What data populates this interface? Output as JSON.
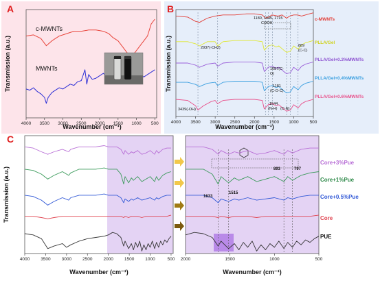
{
  "panels": {
    "A": {
      "letter": "A",
      "xlabel": "Wavenumber (cm⁻¹)",
      "ylabel": "Transmission (a.u.)",
      "xticks": [
        "4000",
        "3500",
        "3000",
        "2500",
        "2000",
        "1500",
        "1000",
        "500"
      ],
      "xlim": [
        4000,
        450
      ],
      "series_labels": [
        "c-MWNTs",
        "MWNTs"
      ],
      "background": "#fde4ea"
    },
    "B": {
      "letter": "B",
      "xlabel": "Wavenumber (cm⁻¹)",
      "ylabel": "Transmission (a.u.)",
      "xticks": [
        "4000",
        "3500",
        "3000",
        "2500",
        "2000",
        "1500",
        "1000",
        "500"
      ],
      "xlim": [
        4000,
        500
      ],
      "series_labels": [
        "c-MWNTs",
        "PLLA/Gel",
        "PLLA/Gel+0.2%MWNTs",
        "PLLA/Gel+0.4%MWNTs",
        "PLLA/Gel+0.6%MWNTs"
      ],
      "annotations": [
        "1180, 1645, 1715",
        "COOH",
        "2937(-CH2)",
        "889",
        "(C-C)",
        "1087(C-",
        "O)",
        "1181",
        "(C-O-C)",
        "1544",
        "(N-H)",
        "(C-N)",
        "3439(-OH)"
      ],
      "background": "#e6eefa"
    },
    "C": {
      "letter": "C",
      "xlabel": "Wavenumber (cm⁻¹)",
      "ylabel": "Transmission (a.u.)",
      "left_xticks": [
        "4000",
        "3500",
        "3000",
        "2500",
        "2000",
        "1500",
        "1000",
        "500"
      ],
      "right_xticks": [
        "2000",
        "1500",
        "1000",
        "500"
      ],
      "series_labels": [
        "Core+3%Pue",
        "Core+1%Pue",
        "Core+0.5%Pue",
        "Core",
        "PUE"
      ],
      "annotations": [
        "1633",
        "1515",
        "893",
        "797"
      ],
      "background": "#ece4f6",
      "highlight": "#c7a3ee"
    }
  },
  "chart_data": [
    {
      "type": "line",
      "title": "A",
      "xlabel": "Wavenumber (cm⁻¹)",
      "ylabel": "Transmission (a.u.)",
      "xlim": [
        4000,
        450
      ],
      "series": [
        {
          "name": "c-MWNTs",
          "color": "#e8443a",
          "x": [
            4000,
            3800,
            3600,
            3450,
            3300,
            3100,
            2900,
            2700,
            2500,
            2300,
            2100,
            1900,
            1750,
            1650,
            1500,
            1400,
            1300,
            1200,
            1150,
            1100,
            1000,
            900,
            800,
            700,
            600,
            500
          ],
          "y": [
            0.78,
            0.79,
            0.76,
            0.7,
            0.74,
            0.78,
            0.8,
            0.82,
            0.82,
            0.83,
            0.83,
            0.82,
            0.8,
            0.77,
            0.74,
            0.7,
            0.66,
            0.62,
            0.6,
            0.62,
            0.66,
            0.7,
            0.74,
            0.78,
            0.88,
            0.92
          ]
        },
        {
          "name": "MWNTs",
          "color": "#2c2fd6",
          "x": [
            4000,
            3900,
            3800,
            3700,
            3600,
            3500,
            3450,
            3400,
            3300,
            3200,
            3100,
            3000,
            2900,
            2800,
            2700,
            2600,
            2500,
            2400,
            2350,
            2300,
            2200,
            2100,
            2000,
            1900,
            1800,
            1700,
            1600,
            1500,
            1400,
            1300,
            1200,
            1100,
            1000,
            900,
            800,
            700,
            600,
            500
          ],
          "y": [
            0.34,
            0.33,
            0.35,
            0.32,
            0.3,
            0.27,
            0.22,
            0.27,
            0.31,
            0.33,
            0.35,
            0.34,
            0.36,
            0.38,
            0.37,
            0.4,
            0.41,
            0.5,
            0.38,
            0.46,
            0.42,
            0.43,
            0.45,
            0.47,
            0.44,
            0.43,
            0.42,
            0.44,
            0.41,
            0.45,
            0.43,
            0.44,
            0.45,
            0.46,
            0.44,
            0.46,
            0.48,
            0.5
          ]
        }
      ]
    },
    {
      "type": "line",
      "title": "B",
      "xlabel": "Wavenumber (cm⁻¹)",
      "ylabel": "Transmission (a.u.)",
      "xlim": [
        4000,
        500
      ],
      "series": [
        {
          "name": "c-MWNTs",
          "color": "#e23b33",
          "x": [
            4000,
            3700,
            3500,
            3400,
            3200,
            3000,
            2800,
            2500,
            2200,
            2000,
            1800,
            1715,
            1645,
            1550,
            1400,
            1300,
            1180,
            1100,
            1000,
            900,
            800,
            700,
            600,
            500
          ],
          "y": [
            0.94,
            0.93,
            0.89,
            0.88,
            0.92,
            0.94,
            0.95,
            0.95,
            0.96,
            0.96,
            0.95,
            0.92,
            0.93,
            0.95,
            0.94,
            0.95,
            0.92,
            0.94,
            0.95,
            0.95,
            0.94,
            0.95,
            0.96,
            0.97
          ]
        },
        {
          "name": "PLLA/Gel",
          "color": "#e0e832",
          "x": [
            4000,
            3700,
            3500,
            3400,
            3200,
            3000,
            2937,
            2800,
            2500,
            2200,
            2000,
            1800,
            1750,
            1650,
            1544,
            1450,
            1380,
            1250,
            1181,
            1087,
            1000,
            889,
            800,
            700,
            600,
            500
          ],
          "y": [
            0.7,
            0.7,
            0.68,
            0.66,
            0.7,
            0.7,
            0.66,
            0.7,
            0.71,
            0.71,
            0.71,
            0.7,
            0.62,
            0.66,
            0.67,
            0.65,
            0.66,
            0.62,
            0.6,
            0.61,
            0.66,
            0.63,
            0.67,
            0.69,
            0.7,
            0.71
          ]
        },
        {
          "name": "PLLA/Gel+0.2%MWNTs",
          "color": "#9a5fd9",
          "x": [
            4000,
            3700,
            3500,
            3400,
            3200,
            3000,
            2937,
            2800,
            2500,
            2200,
            2000,
            1800,
            1750,
            1650,
            1544,
            1450,
            1380,
            1250,
            1181,
            1087,
            1000,
            889,
            800,
            700,
            600,
            500
          ],
          "y": [
            0.5,
            0.5,
            0.48,
            0.46,
            0.49,
            0.5,
            0.47,
            0.5,
            0.51,
            0.51,
            0.51,
            0.5,
            0.42,
            0.46,
            0.47,
            0.45,
            0.46,
            0.42,
            0.4,
            0.41,
            0.46,
            0.43,
            0.47,
            0.49,
            0.5,
            0.51
          ]
        },
        {
          "name": "PLLA/Gel+0.4%MWNTs",
          "color": "#3a9fe0",
          "x": [
            4000,
            3700,
            3500,
            3400,
            3200,
            3000,
            2937,
            2800,
            2500,
            2200,
            2000,
            1800,
            1750,
            1650,
            1544,
            1450,
            1380,
            1250,
            1181,
            1087,
            1000,
            889,
            800,
            700,
            600,
            500
          ],
          "y": [
            0.32,
            0.32,
            0.3,
            0.28,
            0.31,
            0.32,
            0.29,
            0.32,
            0.33,
            0.33,
            0.33,
            0.32,
            0.24,
            0.28,
            0.29,
            0.27,
            0.28,
            0.24,
            0.22,
            0.23,
            0.28,
            0.25,
            0.29,
            0.31,
            0.32,
            0.33
          ]
        },
        {
          "name": "PLLA/Gel+0.6%MWNTs",
          "color": "#e8508a",
          "x": [
            4000,
            3700,
            3500,
            3439,
            3300,
            3100,
            3000,
            2937,
            2800,
            2500,
            2200,
            2000,
            1800,
            1750,
            1650,
            1544,
            1450,
            1380,
            1250,
            1181,
            1087,
            1000,
            889,
            800,
            700,
            600,
            500
          ],
          "y": [
            0.16,
            0.15,
            0.1,
            0.06,
            0.1,
            0.14,
            0.15,
            0.12,
            0.15,
            0.16,
            0.16,
            0.16,
            0.15,
            0.07,
            0.11,
            0.12,
            0.1,
            0.11,
            0.07,
            0.05,
            0.06,
            0.11,
            0.08,
            0.12,
            0.14,
            0.15,
            0.16
          ]
        }
      ]
    },
    {
      "type": "line",
      "title": "C",
      "xlabel": "Wavenumber (cm⁻¹)",
      "ylabel": "Transmission (a.u.)",
      "xlim": [
        4000,
        450
      ],
      "series": [
        {
          "name": "Core+3%Pue",
          "color": "#b86fd6",
          "x": [
            4000,
            3800,
            3600,
            3450,
            3300,
            3100,
            2950,
            2900,
            2700,
            2500,
            2300,
            2100,
            2000,
            1800,
            1700,
            1633,
            1600,
            1515,
            1450,
            1400,
            1300,
            1200,
            1100,
            1000,
            893,
            850,
            797,
            700,
            600,
            500
          ],
          "y": [
            0.86,
            0.85,
            0.82,
            0.8,
            0.82,
            0.84,
            0.82,
            0.84,
            0.86,
            0.86,
            0.86,
            0.87,
            0.86,
            0.86,
            0.84,
            0.8,
            0.83,
            0.8,
            0.82,
            0.81,
            0.83,
            0.8,
            0.81,
            0.83,
            0.8,
            0.83,
            0.81,
            0.84,
            0.85,
            0.85
          ]
        },
        {
          "name": "Core+1%Pue",
          "color": "#3a9a5a",
          "x": [
            4000,
            3800,
            3600,
            3450,
            3300,
            3100,
            2950,
            2900,
            2700,
            2500,
            2300,
            2100,
            2000,
            1800,
            1700,
            1633,
            1600,
            1515,
            1450,
            1400,
            1300,
            1200,
            1100,
            1000,
            893,
            850,
            797,
            700,
            600,
            500
          ],
          "y": [
            0.68,
            0.67,
            0.64,
            0.6,
            0.63,
            0.66,
            0.63,
            0.65,
            0.68,
            0.68,
            0.68,
            0.69,
            0.68,
            0.68,
            0.64,
            0.56,
            0.62,
            0.57,
            0.61,
            0.59,
            0.62,
            0.58,
            0.6,
            0.62,
            0.58,
            0.62,
            0.59,
            0.63,
            0.65,
            0.66
          ]
        },
        {
          "name": "Core+0.5%Pue",
          "color": "#2f57d6",
          "x": [
            4000,
            3800,
            3600,
            3450,
            3300,
            3100,
            2950,
            2900,
            2700,
            2500,
            2300,
            2100,
            2000,
            1800,
            1700,
            1633,
            1600,
            1515,
            1450,
            1400,
            1300,
            1200,
            1100,
            1000,
            893,
            850,
            797,
            700,
            600,
            500
          ],
          "y": [
            0.47,
            0.46,
            0.43,
            0.39,
            0.42,
            0.45,
            0.43,
            0.45,
            0.47,
            0.47,
            0.47,
            0.48,
            0.47,
            0.47,
            0.45,
            0.41,
            0.44,
            0.42,
            0.44,
            0.43,
            0.45,
            0.43,
            0.44,
            0.45,
            0.43,
            0.45,
            0.44,
            0.46,
            0.47,
            0.47
          ]
        },
        {
          "name": "Core",
          "color": "#e0434f",
          "x": [
            4000,
            3800,
            3600,
            3450,
            3300,
            3100,
            2950,
            2900,
            2700,
            2500,
            2300,
            2100,
            2000,
            1800,
            1700,
            1633,
            1600,
            1515,
            1450,
            1400,
            1300,
            1200,
            1100,
            1000,
            893,
            850,
            797,
            700,
            600,
            500
          ],
          "y": [
            0.3,
            0.3,
            0.29,
            0.28,
            0.29,
            0.3,
            0.3,
            0.3,
            0.3,
            0.3,
            0.3,
            0.3,
            0.3,
            0.3,
            0.3,
            0.29,
            0.3,
            0.29,
            0.3,
            0.3,
            0.3,
            0.29,
            0.3,
            0.3,
            0.3,
            0.3,
            0.3,
            0.3,
            0.3,
            0.31
          ]
        },
        {
          "name": "PUE",
          "color": "#333333",
          "x": [
            4000,
            3800,
            3600,
            3450,
            3300,
            3100,
            3000,
            2900,
            2700,
            2500,
            2300,
            2100,
            2000,
            1900,
            1800,
            1700,
            1633,
            1600,
            1515,
            1450,
            1400,
            1350,
            1300,
            1250,
            1200,
            1150,
            1100,
            1050,
            1000,
            950,
            893,
            850,
            797,
            750,
            700,
            650,
            600,
            550,
            500
          ],
          "y": [
            0.16,
            0.15,
            0.12,
            0.04,
            0.06,
            0.08,
            0.05,
            0.07,
            0.1,
            0.12,
            0.13,
            0.14,
            0.15,
            0.17,
            0.16,
            0.13,
            0.06,
            0.1,
            0.04,
            0.08,
            0.03,
            0.09,
            0.05,
            0.1,
            0.02,
            0.07,
            0.03,
            0.08,
            0.05,
            0.1,
            0.04,
            0.09,
            0.05,
            0.1,
            0.07,
            0.11,
            0.09,
            0.12,
            0.14
          ]
        }
      ]
    }
  ]
}
